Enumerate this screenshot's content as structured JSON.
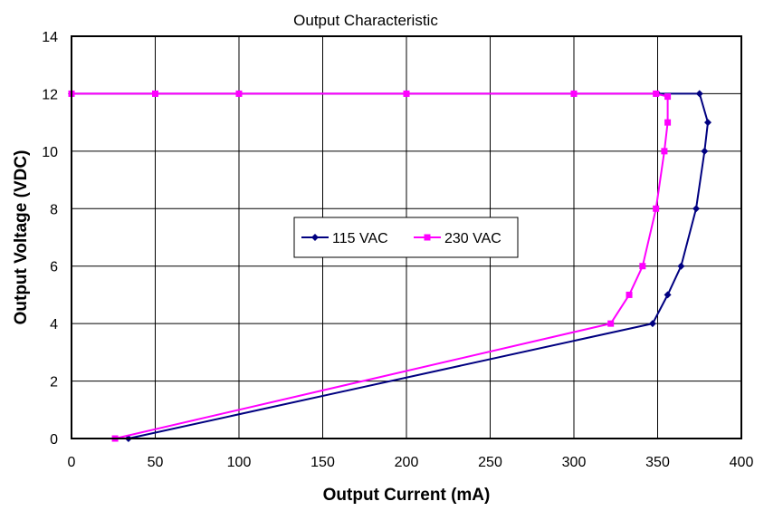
{
  "chart_data": {
    "type": "line",
    "title": "Output Characteristic",
    "xlabel": "Output Current (mA)",
    "ylabel": "Output Voltage (VDC)",
    "xlim": [
      0,
      400
    ],
    "ylim": [
      0,
      14
    ],
    "xticks": [
      0,
      50,
      100,
      150,
      200,
      250,
      300,
      350,
      400
    ],
    "yticks": [
      0,
      2,
      4,
      6,
      8,
      10,
      12,
      14
    ],
    "grid": true,
    "legend_position": "center",
    "series": [
      {
        "name": "115 VAC",
        "color": "#000080",
        "marker": "diamond",
        "points": [
          [
            0,
            12
          ],
          [
            50,
            12
          ],
          [
            100,
            12
          ],
          [
            200,
            12
          ],
          [
            300,
            12
          ],
          [
            350,
            12
          ],
          [
            375,
            12
          ],
          [
            380,
            11
          ],
          [
            378,
            10
          ],
          [
            373,
            8
          ],
          [
            364,
            6
          ],
          [
            356,
            5
          ],
          [
            347,
            4
          ],
          [
            34,
            0
          ]
        ]
      },
      {
        "name": "230 VAC",
        "color": "#ff00ff",
        "marker": "square",
        "points": [
          [
            0,
            12
          ],
          [
            50,
            12
          ],
          [
            100,
            12
          ],
          [
            200,
            12
          ],
          [
            300,
            12
          ],
          [
            349,
            12
          ],
          [
            356,
            11.9
          ],
          [
            356,
            11
          ],
          [
            354,
            10
          ],
          [
            349,
            8
          ],
          [
            341,
            6
          ],
          [
            333,
            5
          ],
          [
            322,
            4
          ],
          [
            26,
            0
          ]
        ]
      }
    ]
  }
}
